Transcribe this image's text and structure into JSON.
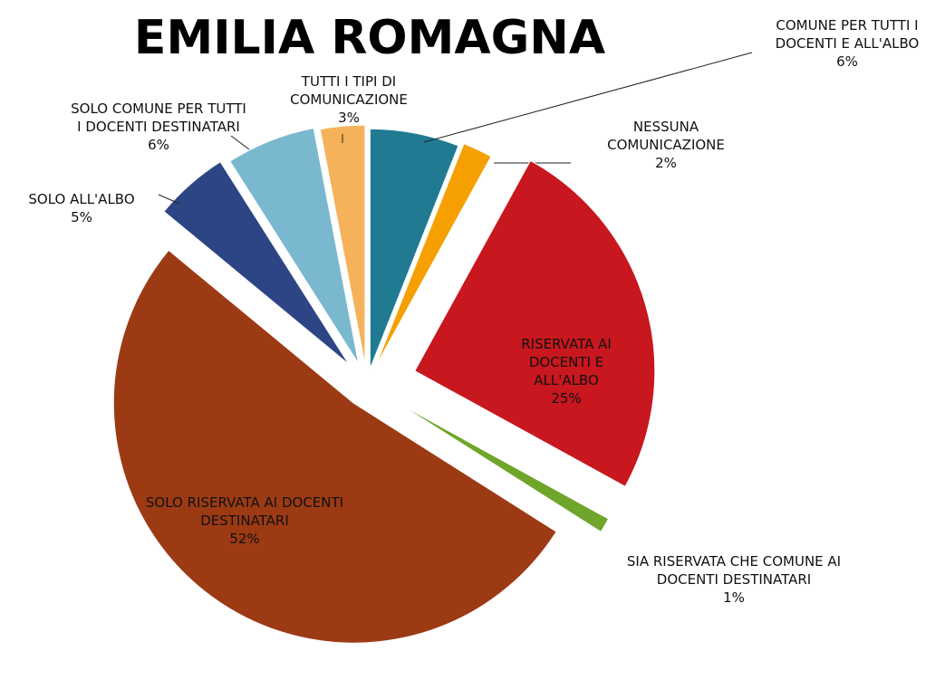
{
  "chart_data": {
    "type": "pie",
    "title": "EMILIA ROMAGNA",
    "categories": [
      "COMUNE PER TUTTI I DOCENTI E ALL'ALBO",
      "NESSUNA COMUNICAZIONE",
      "RISERVATA AI DOCENTI E ALL'ALBO",
      "SIA RISERVATA CHE COMUNE AI DOCENTI DESTINATARI",
      "SOLO RISERVATA AI DOCENTI DESTINATARI",
      "SOLO ALL'ALBO",
      "SOLO COMUNE PER TUTTI I DOCENTI DESTINATARI",
      "TUTTI I TIPI DI COMUNICAZIONE"
    ],
    "values": [
      6,
      2,
      25,
      1,
      52,
      5,
      6,
      3
    ],
    "value_labels": [
      "6%",
      "2%",
      "25%",
      "1%",
      "52%",
      "5%",
      "6%",
      "3%"
    ],
    "colors": [
      "#1f7a92",
      "#f5a000",
      "#c8171e",
      "#6ea52a",
      "#9c3a14",
      "#2e4585",
      "#7ab8d0",
      "#f5b25a"
    ]
  }
}
